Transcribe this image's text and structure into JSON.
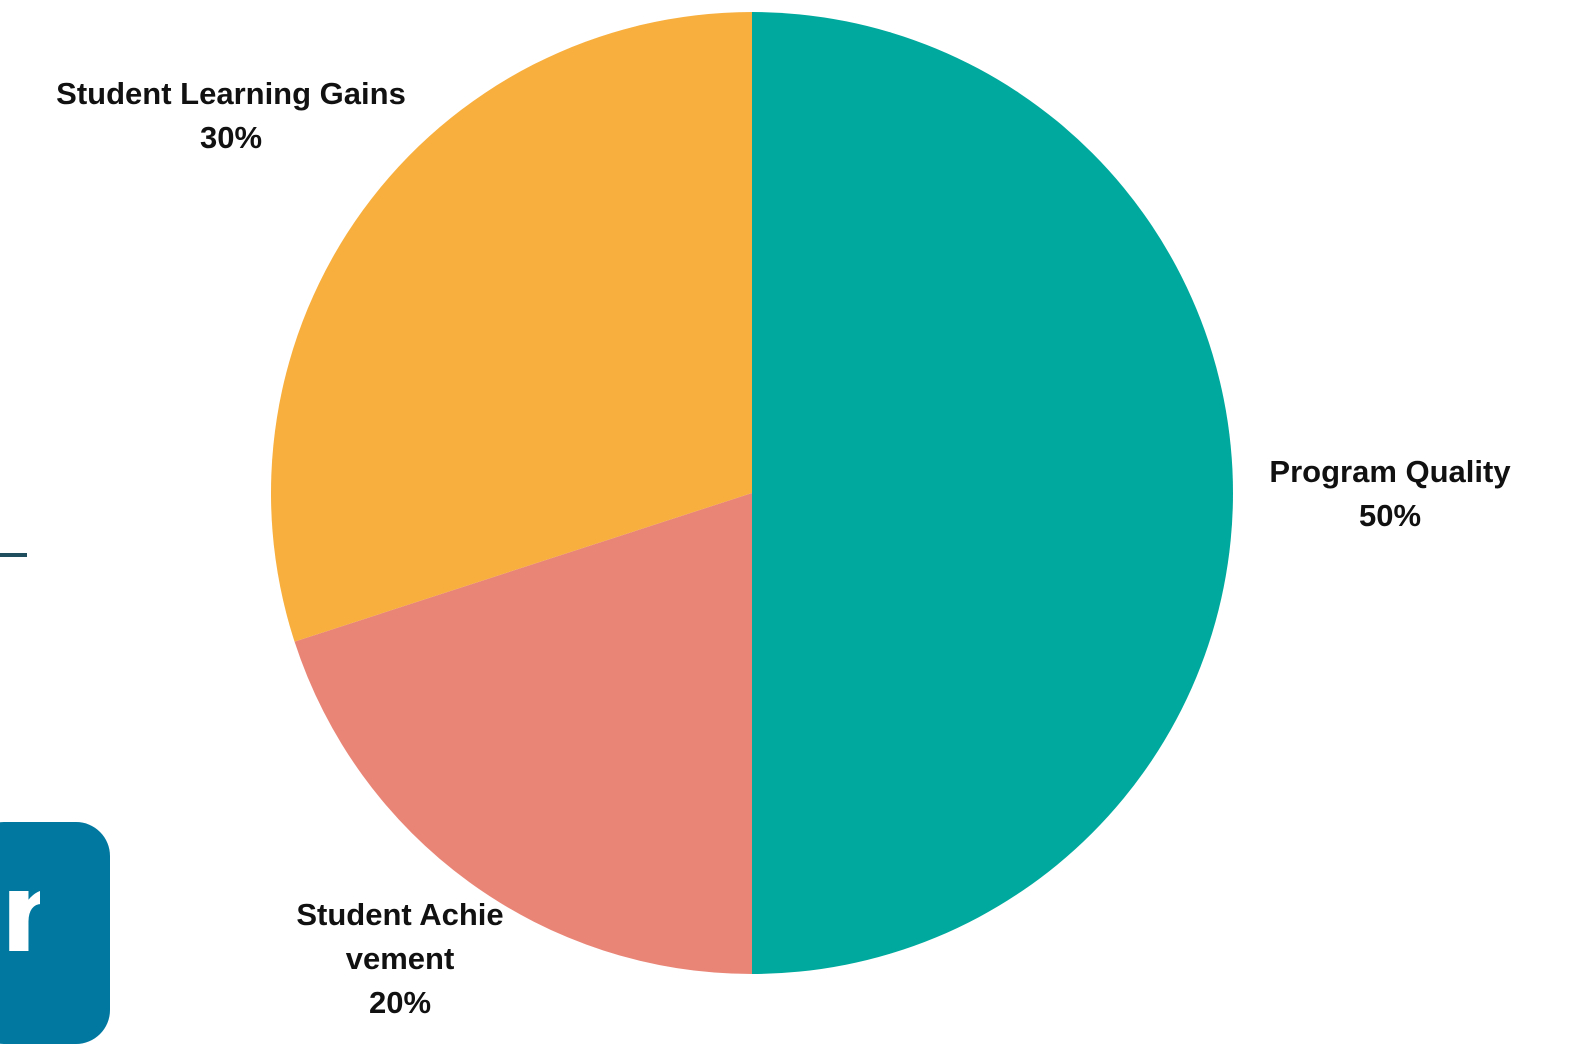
{
  "chart_data": {
    "type": "pie",
    "start_angle_deg": 0,
    "direction": "clockwise",
    "slices": [
      {
        "label": "Program Quality",
        "value": 50,
        "value_label": "50%",
        "color": "#00A99D"
      },
      {
        "label": "Student Achievement",
        "value": 20,
        "value_label": "20%",
        "color": "#E98577"
      },
      {
        "label": "Student Learning Gains",
        "value": 30,
        "value_label": "30%",
        "color": "#F8AF3E"
      }
    ]
  },
  "decor": {
    "side_bar_color": "#1F4E5F",
    "logo_tile_color": "#0078A0",
    "logo_glyph": "n"
  }
}
